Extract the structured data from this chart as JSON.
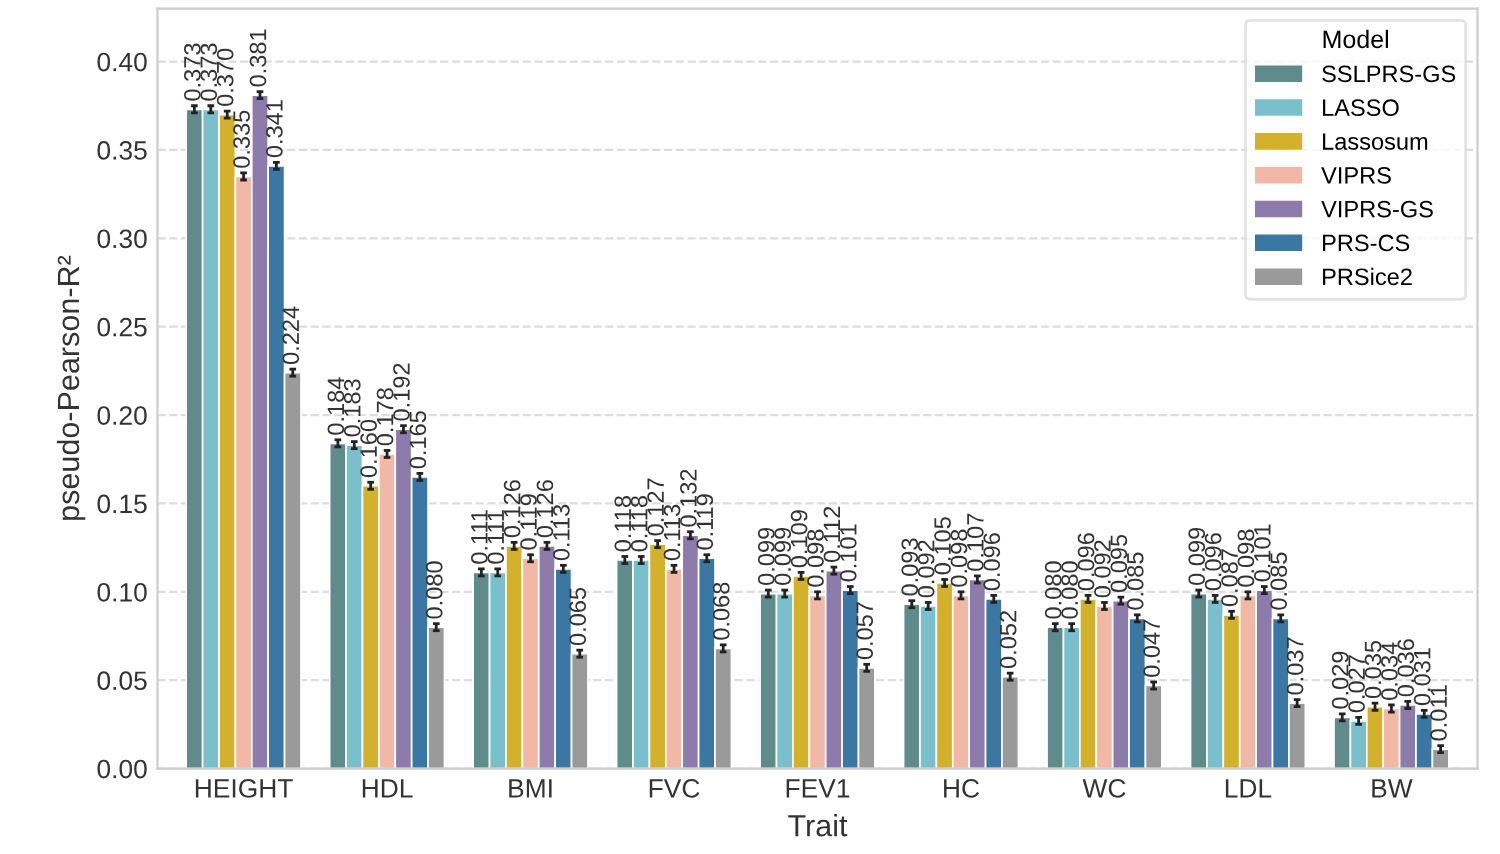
{
  "chart_data": {
    "type": "bar",
    "xlabel": "Trait",
    "ylabel": "pseudo-Pearson-R²",
    "legend_title": "Model",
    "categories": [
      "HEIGHT",
      "HDL",
      "BMI",
      "FVC",
      "FEV1",
      "HC",
      "WC",
      "LDL",
      "BW"
    ],
    "series": [
      {
        "name": "SSLPRS-GS",
        "color": "#5f8b8b",
        "values": [
          0.373,
          0.184,
          0.111,
          0.118,
          0.099,
          0.093,
          0.08,
          0.099,
          0.029
        ],
        "value_labels": [
          "0.373",
          "0.184",
          "0.111",
          "0.118",
          "0.099",
          "0.093",
          "0.080",
          "0.099",
          "0.029"
        ],
        "errors": [
          0.002,
          0.002,
          0.002,
          0.002,
          0.002,
          0.002,
          0.002,
          0.002,
          0.002
        ]
      },
      {
        "name": "LASSO",
        "color": "#79c0cc",
        "values": [
          0.373,
          0.183,
          0.111,
          0.118,
          0.099,
          0.092,
          0.08,
          0.096,
          0.027
        ],
        "value_labels": [
          "0.373",
          "0.183",
          "0.111",
          "0.118",
          "0.099",
          "0.092",
          "0.080",
          "0.096",
          "0.027"
        ],
        "errors": [
          0.002,
          0.002,
          0.002,
          0.002,
          0.002,
          0.002,
          0.002,
          0.002,
          0.002
        ]
      },
      {
        "name": "Lassosum",
        "color": "#d4b12a",
        "values": [
          0.37,
          0.16,
          0.126,
          0.127,
          0.109,
          0.105,
          0.096,
          0.087,
          0.035
        ],
        "value_labels": [
          "0.370",
          "0.160",
          "0.126",
          "0.127",
          "0.109",
          "0.105",
          "0.096",
          "0.087",
          "0.035"
        ],
        "errors": [
          0.002,
          0.002,
          0.002,
          0.002,
          0.002,
          0.002,
          0.002,
          0.002,
          0.002
        ]
      },
      {
        "name": "VIPRS",
        "color": "#f1b8a5",
        "values": [
          0.335,
          0.178,
          0.119,
          0.113,
          0.098,
          0.098,
          0.092,
          0.098,
          0.034
        ],
        "value_labels": [
          "0.335",
          "0.178",
          "0.119",
          "0.113",
          "0.098",
          "0.098",
          "0.092",
          "0.098",
          "0.034"
        ],
        "errors": [
          0.002,
          0.002,
          0.002,
          0.002,
          0.002,
          0.002,
          0.002,
          0.002,
          0.002
        ]
      },
      {
        "name": "VIPRS-GS",
        "color": "#8c7bab",
        "values": [
          0.381,
          0.192,
          0.126,
          0.132,
          0.112,
          0.107,
          0.095,
          0.101,
          0.036
        ],
        "value_labels": [
          "0.381",
          "0.192",
          "0.126",
          "0.132",
          "0.112",
          "0.107",
          "0.095",
          "0.101",
          "0.036"
        ],
        "errors": [
          0.002,
          0.002,
          0.002,
          0.002,
          0.002,
          0.002,
          0.002,
          0.002,
          0.002
        ]
      },
      {
        "name": "PRS-CS",
        "color": "#3a78a3",
        "values": [
          0.341,
          0.165,
          0.113,
          0.119,
          0.101,
          0.096,
          0.085,
          0.085,
          0.031
        ],
        "value_labels": [
          "0.341",
          "0.165",
          "0.113",
          "0.119",
          "0.101",
          "0.096",
          "0.085",
          "0.085",
          "0.031"
        ],
        "errors": [
          0.002,
          0.002,
          0.002,
          0.002,
          0.002,
          0.002,
          0.002,
          0.002,
          0.002
        ]
      },
      {
        "name": "PRSice2",
        "color": "#9a9a9a",
        "values": [
          0.224,
          0.08,
          0.065,
          0.068,
          0.057,
          0.052,
          0.047,
          0.037,
          0.011
        ],
        "value_labels": [
          "0.224",
          "0.080",
          "0.065",
          "0.068",
          "0.057",
          "0.052",
          "0.047",
          "0.037",
          "0.011"
        ],
        "errors": [
          0.002,
          0.002,
          0.002,
          0.002,
          0.002,
          0.002,
          0.002,
          0.002,
          0.002
        ]
      }
    ],
    "ylim": [
      0,
      0.43
    ],
    "yticks": [
      {
        "value": 0,
        "label": "0.00"
      },
      {
        "value": 0.05,
        "label": "0.05"
      },
      {
        "value": 0.1,
        "label": "0.10"
      },
      {
        "value": 0.15,
        "label": "0.15"
      },
      {
        "value": 0.2,
        "label": "0.20"
      },
      {
        "value": 0.25,
        "label": "0.25"
      },
      {
        "value": 0.3,
        "label": "0.30"
      },
      {
        "value": 0.35,
        "label": "0.35"
      },
      {
        "value": 0.4,
        "label": "0.40"
      }
    ],
    "grid": "y",
    "legend": "top right"
  }
}
